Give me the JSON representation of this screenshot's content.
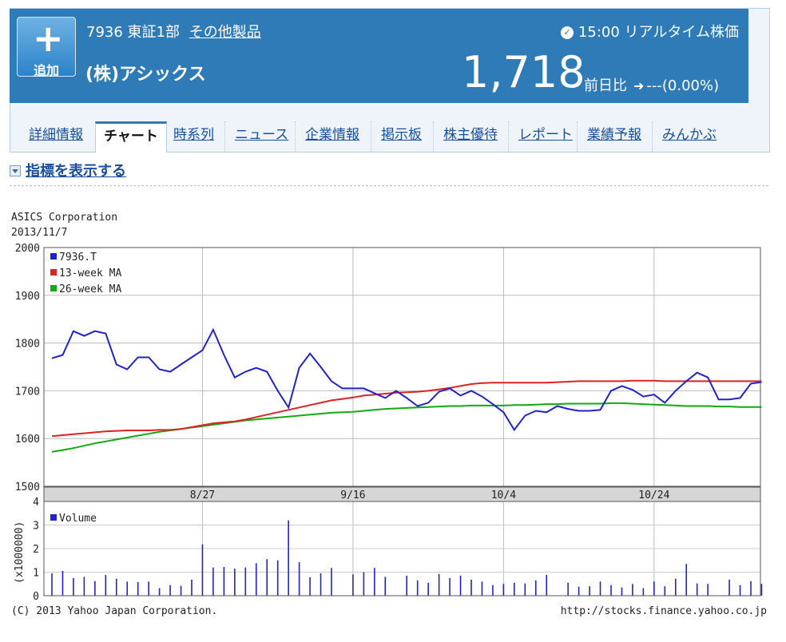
{
  "stock": {
    "code": "7936",
    "market": "東証1部",
    "sector": "その他製品",
    "name": "(株)アシックス",
    "add_label": "追加",
    "time": "15:00",
    "realtime_label": "リアルタイム株価",
    "price": "1,718",
    "change_label": "前日比",
    "change_value": "---(0.00%)"
  },
  "tabs": [
    "詳細情報",
    "チャート",
    "時系列",
    "ニュース",
    "企業情報",
    "掲示板",
    "株主優待",
    "レポート",
    "業績予報",
    "みんかぶ"
  ],
  "active_tab": "チャート",
  "indicator_toggle": "指標を表示する",
  "colors": {
    "header": "#2e7bb7",
    "price_line": "#2222cc",
    "ma13": "#dd2222",
    "ma26": "#11aa11",
    "volume": "#2222cc"
  },
  "chart_data": {
    "type": "line",
    "title": "ASICS Corporation",
    "subtitle": "2013/11/7",
    "ylim": [
      1500,
      2000
    ],
    "yticks": [
      1500,
      1600,
      1700,
      1800,
      1900,
      2000
    ],
    "xlim": [
      0,
      65
    ],
    "xticks": [
      {
        "i": 14,
        "label": "8/27"
      },
      {
        "i": 28,
        "label": "9/16"
      },
      {
        "i": 42,
        "label": "10/4"
      },
      {
        "i": 56,
        "label": "10/24"
      }
    ],
    "series": [
      {
        "name": "7936.T",
        "values": [
          1768,
          1775,
          1825,
          1815,
          1825,
          1820,
          1755,
          1745,
          1770,
          1770,
          1745,
          1740,
          1755,
          1770,
          1785,
          1828,
          1775,
          1728,
          1740,
          1748,
          1740,
          1700,
          1665,
          1748,
          1778,
          1750,
          1720,
          1705,
          1705,
          1705,
          1695,
          1685,
          1700,
          1685,
          1668,
          1675,
          1698,
          1705,
          1690,
          1700,
          1688,
          1672,
          1655,
          1618,
          1648,
          1658,
          1655,
          1668,
          1662,
          1658,
          1658,
          1660,
          1700,
          1710,
          1702,
          1688,
          1692,
          1675,
          1700,
          1720,
          1738,
          1728,
          1682,
          1682,
          1685,
          1715,
          1718
        ]
      },
      {
        "name": "13-week MA",
        "values": [
          1605,
          1607,
          1609,
          1611,
          1613,
          1615,
          1616,
          1617,
          1617,
          1617,
          1618,
          1618,
          1620,
          1624,
          1628,
          1632,
          1634,
          1636,
          1640,
          1645,
          1650,
          1655,
          1660,
          1665,
          1670,
          1675,
          1680,
          1683,
          1686,
          1690,
          1692,
          1694,
          1696,
          1697,
          1698,
          1700,
          1703,
          1706,
          1710,
          1714,
          1716,
          1717,
          1717,
          1717,
          1717,
          1717,
          1717,
          1718,
          1719,
          1720,
          1720,
          1720,
          1720,
          1720,
          1721,
          1721,
          1721,
          1720,
          1720,
          1720,
          1720,
          1720,
          1720,
          1720,
          1720,
          1720,
          1720
        ]
      },
      {
        "name": "26-week MA",
        "values": [
          1572,
          1576,
          1580,
          1585,
          1590,
          1594,
          1598,
          1602,
          1606,
          1610,
          1614,
          1617,
          1620,
          1623,
          1626,
          1629,
          1632,
          1635,
          1638,
          1640,
          1642,
          1644,
          1646,
          1648,
          1650,
          1652,
          1654,
          1655,
          1656,
          1658,
          1660,
          1662,
          1663,
          1664,
          1665,
          1666,
          1667,
          1668,
          1668,
          1669,
          1669,
          1669,
          1669,
          1670,
          1670,
          1671,
          1672,
          1672,
          1673,
          1673,
          1673,
          1673,
          1674,
          1674,
          1673,
          1672,
          1671,
          1670,
          1669,
          1668,
          1668,
          1668,
          1667,
          1667,
          1666,
          1666,
          1666
        ]
      }
    ],
    "volume": {
      "name": "Volume",
      "ylabel": "(x1000000)",
      "ylim": [
        0,
        4
      ],
      "yticks": [
        0,
        1,
        2,
        3,
        4
      ],
      "values": [
        0.95,
        1.05,
        0.75,
        0.8,
        0.62,
        0.88,
        0.72,
        0.6,
        0.58,
        0.6,
        0.32,
        0.45,
        0.42,
        0.68,
        2.18,
        1.2,
        1.22,
        1.15,
        1.2,
        1.38,
        1.55,
        1.5,
        3.2,
        1.42,
        0.78,
        0.95,
        1.18,
        0,
        0.9,
        1.0,
        1.18,
        0.8,
        0,
        0.85,
        0.65,
        0.55,
        0.92,
        0.75,
        0.85,
        0.68,
        0.6,
        0.45,
        0.5,
        0.55,
        0.52,
        0.65,
        0.88,
        0,
        0.55,
        0.38,
        0.4,
        0.6,
        0.45,
        0.35,
        0.5,
        0.32,
        0.6,
        0.4,
        0.72,
        1.35,
        0.52,
        0.5,
        0,
        0.68,
        0.45,
        0.62,
        0.5
      ],
      "legend": "Volume"
    },
    "footer_left": "(C) 2013 Yahoo Japan Corporation.",
    "footer_right": "http://stocks.finance.yahoo.co.jp",
    "grid": true,
    "legend_position": "top-left"
  }
}
